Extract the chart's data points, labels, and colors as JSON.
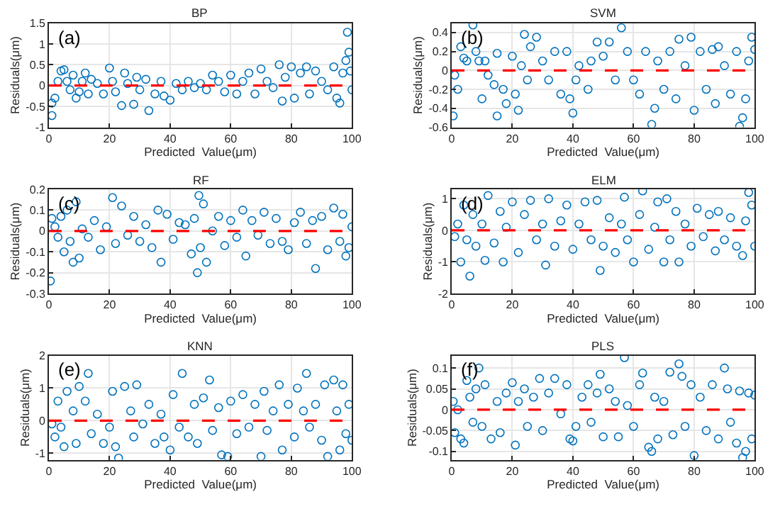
{
  "chart_data": [
    {
      "type": "scatter",
      "title": "BP",
      "xlabel": "Predicted  Value(μm)",
      "ylabel": "Residuals(μm)",
      "annotations": [
        "(a)"
      ],
      "color": "#0072bd",
      "marker": "circle",
      "grid": true,
      "xlim": [
        0,
        100
      ],
      "xticks": [
        0,
        20,
        40,
        60,
        80,
        100
      ],
      "ylim": [
        -1,
        1.5
      ],
      "yticks": [
        -1,
        -0.5,
        0,
        0.5,
        1,
        1.5
      ],
      "ref_lines": [
        {
          "axis": "y",
          "value": 0,
          "color": "#ff0000",
          "line_style": "dashed"
        }
      ],
      "x": [
        1,
        1,
        2,
        3,
        4,
        5,
        6,
        7,
        8,
        9,
        10,
        11,
        12,
        13,
        14,
        16,
        18,
        20,
        21,
        22,
        24,
        25,
        26,
        28,
        29,
        30,
        32,
        33,
        35,
        37,
        38,
        40,
        42,
        44,
        46,
        48,
        50,
        52,
        54,
        56,
        58,
        60,
        62,
        64,
        66,
        68,
        70,
        72,
        74,
        76,
        77,
        78,
        80,
        81,
        83,
        85,
        86,
        88,
        90,
        92,
        94,
        95,
        96,
        97,
        98,
        98.5,
        99,
        99.5,
        100
      ],
      "values": [
        -0.72,
        -0.42,
        -0.3,
        0.1,
        0.35,
        0.38,
        0.1,
        -0.1,
        0.25,
        -0.3,
        -0.15,
        0.1,
        0.3,
        -0.2,
        0.15,
        0.05,
        -0.2,
        0.42,
        0.1,
        -0.15,
        -0.48,
        0.3,
        0.05,
        -0.45,
        0.2,
        -0.1,
        0.15,
        -0.6,
        -0.2,
        0.1,
        -0.25,
        -0.35,
        0.05,
        -0.1,
        0.1,
        -0.05,
        0.05,
        -0.1,
        0.25,
        0.1,
        -0.15,
        0.25,
        -0.2,
        0.1,
        0.3,
        -0.2,
        0.4,
        0.1,
        -0.05,
        0.5,
        -0.37,
        0.2,
        0.45,
        -0.3,
        0.3,
        0.45,
        -0.2,
        0.35,
        0.1,
        -0.1,
        0.45,
        -0.3,
        -0.42,
        0.3,
        0.6,
        1.28,
        0.8,
        0.35,
        -0.1
      ]
    },
    {
      "type": "scatter",
      "title": "SVM",
      "xlabel": "Predicted  Value(μm)",
      "ylabel": "Residuals(μm)",
      "annotations": [
        "(b)"
      ],
      "color": "#0072bd",
      "marker": "circle",
      "grid": true,
      "xlim": [
        0,
        100
      ],
      "xticks": [
        0,
        20,
        40,
        60,
        80,
        100
      ],
      "ylim": [
        -0.6,
        0.5
      ],
      "yticks": [
        -0.6,
        -0.4,
        -0.2,
        0,
        0.2,
        0.4
      ],
      "ref_lines": [
        {
          "axis": "y",
          "value": 0,
          "color": "#ff0000",
          "line_style": "dashed"
        }
      ],
      "x": [
        0.5,
        1,
        2,
        3,
        4,
        5,
        7,
        8,
        9,
        10,
        11,
        12,
        14,
        15,
        15,
        17,
        18,
        20,
        21,
        22,
        23,
        24,
        25,
        26,
        28,
        30,
        32,
        34,
        36,
        38,
        39,
        40,
        41,
        42,
        45,
        46,
        48,
        50,
        52,
        54,
        56,
        58,
        60,
        62,
        64,
        66,
        67,
        68,
        70,
        72,
        74,
        75,
        77,
        79,
        80,
        82,
        84,
        86,
        87,
        88,
        90,
        92,
        94,
        95,
        96,
        97,
        98,
        99,
        100
      ],
      "values": [
        -0.48,
        -0.05,
        -0.2,
        0.25,
        0.13,
        0.1,
        0.48,
        0.2,
        0.1,
        -0.3,
        0.1,
        -0.05,
        -0.15,
        -0.48,
        0.18,
        -0.2,
        -0.35,
        0.15,
        -0.25,
        -0.42,
        0.05,
        0.38,
        -0.1,
        0.25,
        0.35,
        0.1,
        -0.1,
        0.2,
        -0.25,
        0.2,
        -0.3,
        -0.45,
        -0.1,
        0.05,
        -0.2,
        0.1,
        0.3,
        0.15,
        0.3,
        -0.1,
        0.45,
        0.2,
        -0.1,
        -0.25,
        0.2,
        -0.57,
        -0.4,
        0.1,
        -0.2,
        0.2,
        -0.3,
        0.33,
        0.05,
        0.35,
        -0.42,
        0.2,
        -0.2,
        0.22,
        -0.35,
        0.25,
        0.05,
        -0.25,
        0.2,
        -0.59,
        -0.5,
        -0.3,
        0.1,
        0.35,
        0.22
      ]
    },
    {
      "type": "scatter",
      "title": "RF",
      "xlabel": "Predicted  Value(μm)",
      "ylabel": "Residuals(μm)",
      "annotations": [
        "(c)"
      ],
      "color": "#0072bd",
      "marker": "circle",
      "grid": true,
      "xlim": [
        0,
        100
      ],
      "xticks": [
        0,
        20,
        40,
        60,
        80,
        100
      ],
      "ylim": [
        -0.3,
        0.2
      ],
      "yticks": [
        -0.3,
        -0.2,
        -0.1,
        0,
        0.1,
        0.2
      ],
      "ref_lines": [
        {
          "axis": "y",
          "value": 0,
          "color": "#ff0000",
          "line_style": "dashed"
        }
      ],
      "x": [
        0.5,
        1,
        2,
        3,
        4,
        5,
        6,
        7,
        8,
        9,
        10,
        11,
        13,
        15,
        17,
        19,
        21,
        22,
        24,
        26,
        28,
        30,
        32,
        34,
        36,
        37,
        39,
        41,
        43,
        45,
        47,
        48,
        49,
        49.5,
        50,
        51,
        52,
        54,
        56,
        58,
        60,
        62,
        64,
        65,
        67,
        69,
        71,
        73,
        75,
        77,
        79,
        81,
        83,
        85,
        87,
        88,
        90,
        92,
        94,
        96,
        97,
        98,
        99,
        100
      ],
      "values": [
        -0.24,
        0.06,
        0.02,
        -0.03,
        0.07,
        -0.1,
        0.1,
        -0.05,
        -0.15,
        0.14,
        -0.13,
        0.01,
        -0.03,
        0.05,
        -0.09,
        0.02,
        0.16,
        -0.06,
        0.12,
        -0.02,
        0.07,
        -0.05,
        0.03,
        -0.08,
        0.1,
        -0.15,
        0.08,
        -0.04,
        0.04,
        0.03,
        -0.11,
        0.06,
        -0.2,
        0.17,
        -0.08,
        0.13,
        -0.15,
        0.0,
        0.07,
        -0.07,
        0.05,
        -0.03,
        0.1,
        -0.12,
        0.05,
        -0.02,
        0.09,
        -0.06,
        0.06,
        -0.05,
        -0.09,
        0.04,
        0.09,
        -0.06,
        0.05,
        -0.18,
        0.07,
        -0.09,
        0.11,
        -0.05,
        0.08,
        -0.12,
        -0.08,
        0.02
      ]
    },
    {
      "type": "scatter",
      "title": "ELM",
      "xlabel": "Predicted  Value(μm)",
      "ylabel": "Residuals(μm)",
      "annotations": [
        "(d)"
      ],
      "color": "#0072bd",
      "marker": "circle",
      "grid": true,
      "xlim": [
        0,
        100
      ],
      "xticks": [
        0,
        20,
        40,
        60,
        80,
        100
      ],
      "ylim": [
        -2,
        1.3
      ],
      "yticks": [
        -2,
        -1,
        0,
        1
      ],
      "ref_lines": [
        {
          "axis": "y",
          "value": 0,
          "color": "#ff0000",
          "line_style": "dashed"
        }
      ],
      "x": [
        1,
        2,
        3,
        4,
        5,
        6,
        7,
        8,
        10,
        11,
        12,
        14,
        16,
        17,
        18,
        20,
        22,
        24,
        26,
        28,
        30,
        31,
        32,
        34,
        36,
        38,
        40,
        42,
        44,
        46,
        48,
        49,
        50,
        52,
        54,
        56,
        57,
        58,
        60,
        62,
        63,
        65,
        67,
        68,
        70,
        71,
        72,
        74,
        75,
        77,
        79,
        81,
        83,
        85,
        87,
        88,
        90,
        92,
        94,
        96,
        97,
        98,
        99,
        100
      ],
      "values": [
        -0.2,
        0.2,
        -1.0,
        0.8,
        -0.3,
        -1.45,
        0.5,
        -0.5,
        0.2,
        -0.95,
        1.1,
        -0.4,
        0.6,
        -1.0,
        0.1,
        0.9,
        -0.7,
        0.5,
        0.95,
        -0.3,
        0.2,
        -1.1,
        1.0,
        -0.5,
        0.3,
        0.8,
        -0.6,
        0.2,
        0.9,
        -0.3,
        0.95,
        -1.27,
        -0.5,
        0.4,
        -0.7,
        0.2,
        1.05,
        -0.3,
        -1.0,
        0.5,
        1.25,
        -0.6,
        0.1,
        0.9,
        -1.0,
        1.0,
        -0.3,
        0.6,
        -1.0,
        0.2,
        -0.5,
        0.7,
        -0.2,
        0.5,
        -0.65,
        0.6,
        -0.3,
        0.4,
        -0.5,
        -0.8,
        0.3,
        1.2,
        0.8,
        -0.5
      ]
    },
    {
      "type": "scatter",
      "title": "KNN",
      "xlabel": "Predicted  Value(μm)",
      "ylabel": "Residuals(μm)",
      "annotations": [
        "(e)"
      ],
      "color": "#0072bd",
      "marker": "circle",
      "grid": true,
      "xlim": [
        0,
        100
      ],
      "xticks": [
        0,
        20,
        40,
        60,
        80,
        100
      ],
      "ylim": [
        -1.2,
        2
      ],
      "yticks": [
        -1,
        0,
        1,
        2
      ],
      "ref_lines": [
        {
          "axis": "y",
          "value": 0,
          "color": "#ff0000",
          "line_style": "dashed"
        }
      ],
      "x": [
        1,
        2,
        3,
        4,
        5,
        6,
        8,
        9,
        10,
        12,
        13,
        14,
        16,
        18,
        20,
        21,
        22,
        23,
        25,
        27,
        28,
        29,
        31,
        33,
        35,
        37,
        38,
        40,
        41,
        43,
        44,
        46,
        48,
        49,
        51,
        53,
        54,
        56,
        57,
        59,
        60,
        62,
        64,
        66,
        68,
        70,
        71,
        72,
        74,
        76,
        77,
        79,
        81,
        82,
        84,
        85,
        86,
        88,
        90,
        91,
        92,
        94,
        95,
        96,
        97,
        98,
        99,
        100
      ],
      "values": [
        -0.1,
        -0.5,
        0.6,
        -0.2,
        -0.8,
        0.9,
        0.3,
        -0.7,
        1.05,
        0.6,
        1.45,
        -0.4,
        0.2,
        -0.7,
        -0.2,
        0.9,
        -0.8,
        -1.15,
        1.05,
        0.3,
        -0.5,
        1.1,
        -0.1,
        0.5,
        -0.7,
        0.2,
        -0.5,
        -0.9,
        0.8,
        -0.2,
        1.45,
        -0.5,
        0.5,
        -0.7,
        0.7,
        1.25,
        -0.3,
        0.4,
        -1.05,
        -1.1,
        0.6,
        -0.4,
        0.8,
        -0.2,
        0.5,
        -1.1,
        0.9,
        -0.3,
        0.3,
        1.1,
        -0.9,
        0.5,
        -0.5,
        1.0,
        0.3,
        1.45,
        -0.2,
        0.5,
        -0.6,
        1.1,
        -1.1,
        1.25,
        0.3,
        -0.9,
        1.1,
        -0.4,
        0.5,
        -0.6
      ]
    },
    {
      "type": "scatter",
      "title": "PLS",
      "xlabel": "Predicted  Value(μm)",
      "ylabel": "Residuals(μm)",
      "annotations": [
        "(f)"
      ],
      "color": "#0072bd",
      "marker": "circle",
      "grid": true,
      "xlim": [
        0,
        100
      ],
      "xticks": [
        0,
        20,
        40,
        60,
        80,
        100
      ],
      "ylim": [
        -0.12,
        0.13
      ],
      "yticks": [
        -0.1,
        -0.05,
        0,
        0.05,
        0.1
      ],
      "ref_lines": [
        {
          "axis": "y",
          "value": 0,
          "color": "#ff0000",
          "line_style": "dashed"
        }
      ],
      "x": [
        0.5,
        1,
        2,
        3,
        4,
        5,
        6,
        7,
        8,
        9,
        10,
        11,
        13,
        15,
        16,
        18,
        20,
        21,
        22,
        24,
        25,
        27,
        29,
        30,
        32,
        34,
        36,
        38,
        39,
        40,
        41,
        43,
        45,
        46,
        48,
        49,
        50,
        52,
        54,
        55,
        57,
        58,
        60,
        62,
        63,
        65,
        66,
        67,
        68,
        70,
        72,
        73,
        75,
        76,
        77,
        79,
        80,
        82,
        84,
        86,
        88,
        90,
        91,
        92,
        94,
        95,
        96,
        97,
        98,
        99,
        100
      ],
      "values": [
        0.02,
        -0.055,
        0.0,
        -0.07,
        -0.08,
        0.07,
        0.03,
        -0.03,
        0.05,
        0.1,
        -0.04,
        0.06,
        -0.07,
        0.02,
        -0.055,
        0.04,
        0.065,
        -0.085,
        0.02,
        0.05,
        -0.04,
        0.03,
        0.075,
        -0.05,
        0.04,
        0.075,
        -0.01,
        0.06,
        -0.07,
        -0.075,
        -0.04,
        0.03,
        0.06,
        -0.03,
        0.04,
        0.085,
        -0.065,
        0.05,
        0.02,
        -0.065,
        0.125,
        0.01,
        -0.04,
        0.06,
        0.088,
        -0.09,
        -0.1,
        0.03,
        -0.07,
        0.02,
        0.09,
        -0.06,
        0.11,
        0.08,
        -0.04,
        0.06,
        -0.11,
        0.03,
        -0.05,
        0.06,
        -0.07,
        0.1,
        0.05,
        -0.03,
        -0.08,
        0.045,
        -0.115,
        -0.1,
        0.04,
        -0.07,
        0.035
      ]
    }
  ]
}
